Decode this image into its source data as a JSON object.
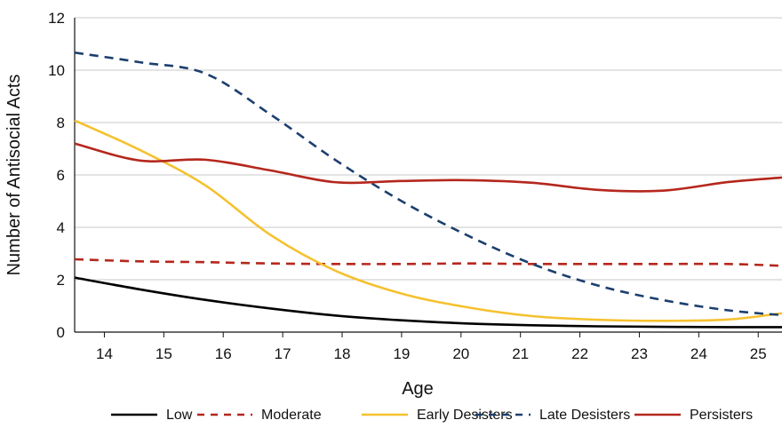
{
  "chart_data": {
    "type": "line",
    "xlabel": "Age",
    "ylabel": "Number of Antisocial Acts",
    "xlim": [
      13.5,
      25.4
    ],
    "ylim": [
      0,
      12
    ],
    "y_ticks": [
      0,
      2,
      4,
      6,
      8,
      10,
      12
    ],
    "x_ticks": [
      14,
      15,
      16,
      17,
      18,
      19,
      20,
      21,
      22,
      23,
      24,
      25
    ],
    "grid": "horizontal",
    "legend_position": "bottom",
    "series": [
      {
        "name": "Low",
        "color": "#000000",
        "dash": "solid",
        "x": [
          13.5,
          14.6,
          15.7,
          16.8,
          17.9,
          19.0,
          20.1,
          21.2,
          22.3,
          23.4,
          24.5,
          25.4
        ],
        "y": [
          2.08,
          1.63,
          1.23,
          0.9,
          0.63,
          0.45,
          0.33,
          0.26,
          0.22,
          0.2,
          0.19,
          0.19
        ]
      },
      {
        "name": "Moderate",
        "color": "#b5271d",
        "dash": "dashed",
        "x": [
          13.5,
          14.6,
          15.7,
          16.8,
          17.9,
          19.0,
          20.1,
          21.2,
          22.3,
          23.4,
          24.5,
          25.4
        ],
        "y": [
          2.78,
          2.7,
          2.67,
          2.62,
          2.6,
          2.6,
          2.62,
          2.6,
          2.6,
          2.6,
          2.6,
          2.53
        ]
      },
      {
        "name": "Early Desisters",
        "color": "#f5c12f",
        "dash": "solid",
        "x": [
          13.5,
          14.6,
          15.7,
          16.8,
          17.9,
          19.0,
          20.1,
          21.2,
          22.3,
          23.4,
          24.5,
          25.4
        ],
        "y": [
          8.08,
          6.95,
          5.6,
          3.7,
          2.33,
          1.47,
          0.95,
          0.61,
          0.47,
          0.43,
          0.48,
          0.72
        ]
      },
      {
        "name": "Late Desisters",
        "color": "#1c3f6e",
        "dash": "dashed",
        "x": [
          13.5,
          14.6,
          15.7,
          16.8,
          17.9,
          19.0,
          20.1,
          21.2,
          22.3,
          23.4,
          24.5,
          25.4
        ],
        "y": [
          10.67,
          10.3,
          9.87,
          8.3,
          6.55,
          5.0,
          3.7,
          2.6,
          1.78,
          1.22,
          0.83,
          0.65
        ]
      },
      {
        "name": "Persisters",
        "color": "#b5271d",
        "dash": "solid",
        "x": [
          13.5,
          14.6,
          15.7,
          16.8,
          17.9,
          19.0,
          20.1,
          21.2,
          22.3,
          23.4,
          24.5,
          25.4
        ],
        "y": [
          7.2,
          6.55,
          6.58,
          6.17,
          5.72,
          5.77,
          5.8,
          5.7,
          5.43,
          5.4,
          5.73,
          5.9
        ]
      }
    ]
  }
}
